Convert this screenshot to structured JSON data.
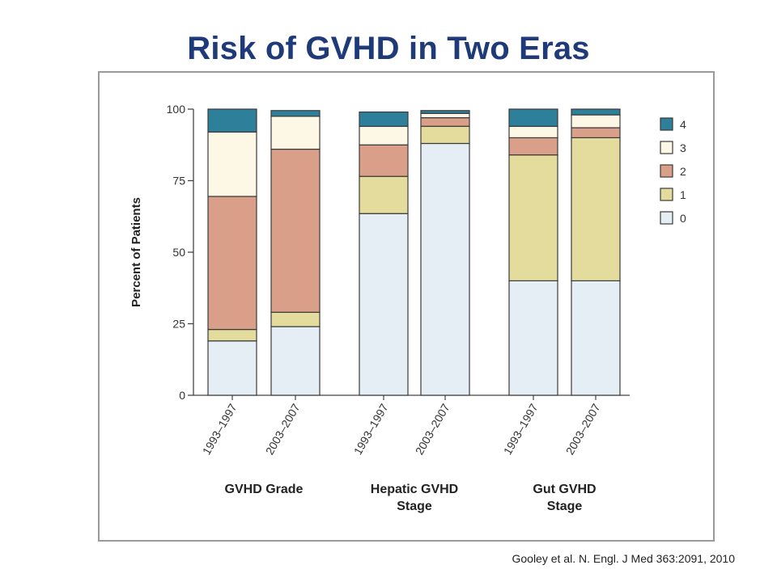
{
  "slide": {
    "title": "Risk of GVHD in Two Eras",
    "citation": "Gooley et al. N. Engl. J Med 363:2091, 2010"
  },
  "chart_data": {
    "type": "bar",
    "stacked": true,
    "ylabel": "Percent of Patients",
    "ylim": [
      0,
      100
    ],
    "yticks": [
      0,
      25,
      50,
      75,
      100
    ],
    "categories": [
      "1993–1997",
      "2003–2007",
      "1993–1997",
      "2003–2007",
      "1993–1997",
      "2003–2007"
    ],
    "groups": [
      {
        "label": "GVHD Grade",
        "categories": [
          0,
          1
        ]
      },
      {
        "label": "Hepatic GVHD Stage",
        "categories": [
          2,
          3
        ]
      },
      {
        "label": "Gut GVHD Stage",
        "categories": [
          4,
          5
        ]
      }
    ],
    "series": [
      {
        "name": "0",
        "color": "#e6eef5",
        "values": [
          19,
          24,
          63.5,
          88,
          40,
          40
        ]
      },
      {
        "name": "1",
        "color": "#e3dc9c",
        "values": [
          4,
          5,
          13,
          6,
          44,
          50
        ]
      },
      {
        "name": "2",
        "color": "#da9f88",
        "values": [
          46.5,
          57,
          11,
          3,
          6,
          3.5
        ]
      },
      {
        "name": "3",
        "color": "#fdf8e6",
        "values": [
          22.5,
          11.5,
          6.5,
          1.5,
          4,
          4.5
        ]
      },
      {
        "name": "4",
        "color": "#2e7f99",
        "values": [
          8,
          2,
          5,
          1,
          6,
          2
        ]
      }
    ],
    "legend_position": "right",
    "grid": false
  }
}
